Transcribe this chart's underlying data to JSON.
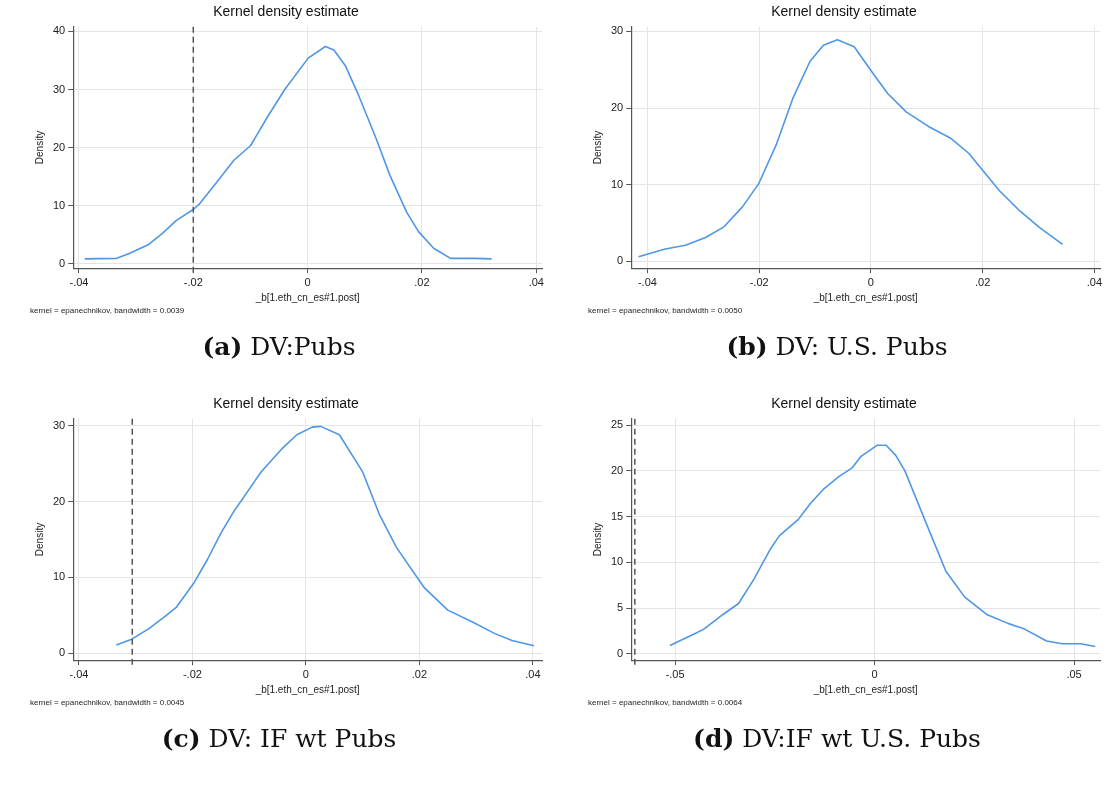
{
  "chart_data": [
    {
      "type": "line",
      "title": "Kernel density estimate",
      "xlabel": "_b[1.eth_cn_es#1.post]",
      "ylabel": "Density",
      "annotations": [
        "kernel = epanechnikov, bandwidth = 0.0039",
        "(a) DV:Pubs"
      ],
      "grid": true,
      "legend": false,
      "marker": "none",
      "line_style": "solid",
      "xlim": [
        -0.041,
        0.041
      ],
      "ylim": [
        -0.8,
        40.8
      ],
      "xticks": [
        {
          "value": -0.04,
          "label": "-.04"
        },
        {
          "value": -0.02,
          "label": "-.02"
        },
        {
          "value": 0,
          "label": "0"
        },
        {
          "value": 0.02,
          "label": ".02"
        },
        {
          "value": 0.04,
          "label": ".04"
        }
      ],
      "yticks": [
        0,
        10,
        20,
        30,
        40
      ],
      "ref_lines": [
        {
          "axis": "x",
          "value": -0.02,
          "color": "#555555",
          "line_style": "dashed"
        }
      ],
      "series": [
        {
          "color": "#4f97e3",
          "x": [
            -0.039,
            -0.0334,
            -0.0313,
            -0.0278,
            -0.0254,
            -0.023,
            -0.0199,
            -0.0189,
            -0.0159,
            -0.0129,
            -0.01,
            -0.007,
            -0.004,
            0.0001,
            0.0031,
            0.0046,
            0.0066,
            0.009,
            0.012,
            0.0144,
            0.0173,
            0.0194,
            0.0221,
            0.025,
            0.0292,
            0.0322
          ],
          "values": [
            0.8,
            0.9,
            1.7,
            3.3,
            5.2,
            7.4,
            9.4,
            10.3,
            14,
            17.8,
            20.3,
            25.3,
            30,
            35.4,
            37.4,
            36.8,
            34.1,
            28.8,
            21.5,
            15.2,
            8.9,
            5.5,
            2.6,
            0.9,
            0.9,
            0.8
          ]
        }
      ]
    },
    {
      "type": "line",
      "title": "Kernel density estimate",
      "xlabel": "_b[1.eth_cn_es#1.post]",
      "ylabel": "Density",
      "annotations": [
        "kernel = epanechnikov, bandwidth = 0.0050",
        "(b) DV: U.S. Pubs"
      ],
      "grid": true,
      "legend": false,
      "marker": "none",
      "line_style": "solid",
      "xlim": [
        -0.0429,
        0.041
      ],
      "ylim": [
        -0.9,
        30.6
      ],
      "xticks": [
        {
          "value": -0.04,
          "label": "-.04"
        },
        {
          "value": -0.02,
          "label": "-.02"
        },
        {
          "value": 0,
          "label": "0"
        },
        {
          "value": 0.02,
          "label": ".02"
        },
        {
          "value": 0.04,
          "label": ".04"
        }
      ],
      "yticks": [
        0,
        10,
        20,
        30
      ],
      "series": [
        {
          "color": "#4f97e3",
          "x": [
            -0.0416,
            -0.0368,
            -0.0332,
            -0.0296,
            -0.0263,
            -0.023,
            -0.0201,
            -0.0169,
            -0.0139,
            -0.0109,
            -0.0085,
            -0.006,
            -0.003,
            0,
            0.003,
            0.0063,
            0.0103,
            0.0142,
            0.0175,
            0.0193,
            0.023,
            0.0266,
            0.0302,
            0.0343
          ],
          "values": [
            0.6,
            1.6,
            2.1,
            3.1,
            4.5,
            7.1,
            10.1,
            15.3,
            21.4,
            26.1,
            28.2,
            28.9,
            28,
            24.9,
            21.9,
            19.5,
            17.6,
            16.1,
            14.1,
            12.5,
            9.2,
            6.6,
            4.4,
            2.2
          ]
        }
      ]
    },
    {
      "type": "line",
      "title": "Kernel density estimate",
      "xlabel": "_b[1.eth_cn_es#1.post]",
      "ylabel": "Density",
      "annotations": [
        "kernel = epanechnikov, bandwidth = 0.0045",
        "(c) DV: IF wt Pubs"
      ],
      "grid": true,
      "legend": false,
      "marker": "none",
      "line_style": "solid",
      "xlim": [
        -0.041,
        0.0416
      ],
      "ylim": [
        -0.9,
        30.9
      ],
      "xticks": [
        {
          "value": -0.04,
          "label": "-.04"
        },
        {
          "value": -0.02,
          "label": "-.02"
        },
        {
          "value": 0,
          "label": "0"
        },
        {
          "value": 0.02,
          "label": ".02"
        },
        {
          "value": 0.04,
          "label": ".04"
        }
      ],
      "yticks": [
        0,
        10,
        20,
        30
      ],
      "ref_lines": [
        {
          "axis": "x",
          "value": -0.0306,
          "color": "#555555",
          "line_style": "dashed"
        }
      ],
      "series": [
        {
          "color": "#4f97e3",
          "x": [
            -0.0334,
            -0.0306,
            -0.0276,
            -0.0246,
            -0.0228,
            -0.0198,
            -0.0174,
            -0.015,
            -0.0127,
            -0.0079,
            -0.0043,
            -0.0016,
            0.0011,
            0.0026,
            0.0059,
            0.01,
            0.013,
            0.016,
            0.0208,
            0.025,
            0.0297,
            0.0333,
            0.0363,
            0.0402
          ],
          "values": [
            1.1,
            1.9,
            3.3,
            5.0,
            6.1,
            9.2,
            12.3,
            15.8,
            18.7,
            23.9,
            26.9,
            28.8,
            29.8,
            29.9,
            28.8,
            23.9,
            18.2,
            13.9,
            8.7,
            5.7,
            4.0,
            2.6,
            1.7,
            1.0
          ]
        }
      ]
    },
    {
      "type": "line",
      "title": "Kernel density estimate",
      "xlabel": "_b[1.eth_cn_es#1.post]",
      "ylabel": "Density",
      "annotations": [
        "kernel = epanechnikov, bandwidth = 0.0064",
        "(d) DV:IF wt U.S. Pubs"
      ],
      "grid": true,
      "legend": false,
      "marker": "none",
      "line_style": "solid",
      "xlim": [
        -0.061,
        0.0565
      ],
      "ylim": [
        -0.7,
        25.7
      ],
      "xticks": [
        {
          "value": -0.05,
          "label": "-.05"
        },
        {
          "value": 0,
          "label": "0"
        },
        {
          "value": 0.05,
          "label": ".05"
        }
      ],
      "yticks": [
        0,
        5,
        10,
        15,
        20,
        25
      ],
      "ref_lines": [
        {
          "axis": "x",
          "value": -0.0601,
          "color": "#555555",
          "line_style": "dashed"
        }
      ],
      "series": [
        {
          "color": "#4f97e3",
          "x": [
            -0.0513,
            -0.0451,
            -0.0428,
            -0.038,
            -0.0341,
            -0.0302,
            -0.0262,
            -0.0239,
            -0.0191,
            -0.016,
            -0.0128,
            -0.0089,
            -0.0057,
            -0.0034,
            0.0006,
            0.0029,
            0.0053,
            0.0076,
            0.0131,
            0.0179,
            0.0226,
            0.0281,
            0.0336,
            0.0376,
            0.0431,
            0.047,
            0.0517,
            0.0553
          ],
          "values": [
            0.9,
            2.2,
            2.7,
            4.3,
            5.5,
            8.2,
            11.4,
            12.9,
            14.7,
            16.5,
            18,
            19.4,
            20.3,
            21.6,
            22.8,
            22.8,
            21.7,
            20,
            14.1,
            9.0,
            6.2,
            4.3,
            3.3,
            2.7,
            1.4,
            1.1,
            1.1,
            0.8
          ]
        }
      ]
    }
  ]
}
